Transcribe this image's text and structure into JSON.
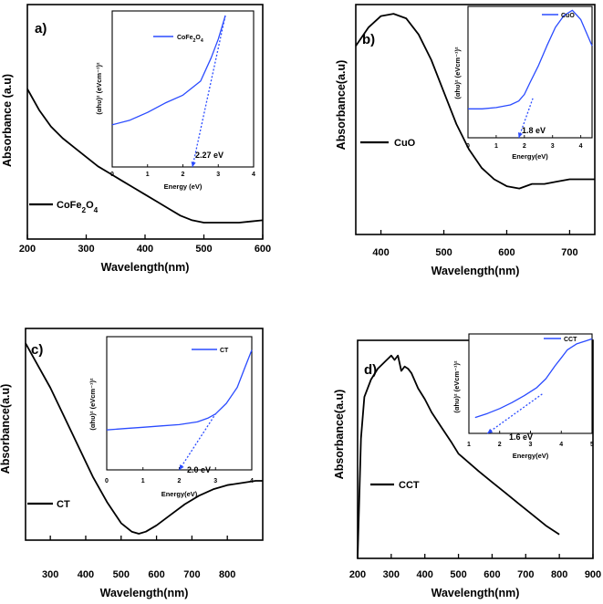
{
  "chart_data": [
    {
      "type": "line",
      "panel_label": "a)",
      "xlabel": "Wavelength(nm)",
      "ylabel": "Absorbance (a.u)",
      "xlim": [
        200,
        600
      ],
      "xticks": [
        "200",
        "300",
        "400",
        "500",
        "600"
      ],
      "ylim": [
        0,
        1
      ],
      "legend_position": "bottom-left",
      "series": [
        {
          "name": "CoFe2O4",
          "color": "#000000",
          "x": [
            200,
            220,
            240,
            260,
            280,
            300,
            320,
            340,
            360,
            380,
            400,
            420,
            440,
            460,
            480,
            500,
            520,
            540,
            560,
            580,
            600
          ],
          "y": [
            0.64,
            0.55,
            0.48,
            0.43,
            0.39,
            0.35,
            0.31,
            0.28,
            0.25,
            0.22,
            0.19,
            0.16,
            0.13,
            0.1,
            0.08,
            0.07,
            0.07,
            0.07,
            0.07,
            0.075,
            0.08
          ]
        }
      ],
      "inset": {
        "xlabel": "Energy (eV)",
        "ylabel": "(αhυ)² (eVcm⁻¹)²",
        "xlim": [
          0,
          4
        ],
        "xticks": [
          "0",
          "1",
          "2",
          "3",
          "4"
        ],
        "ylim": [
          0,
          1
        ],
        "legend_position": "top-right",
        "series": [
          {
            "name": "CoFe2O4",
            "color": "#2a4bff",
            "x": [
              0,
              0.5,
              1.0,
              1.5,
              2.0,
              2.5,
              2.8,
              3.0,
              3.2
            ],
            "y": [
              0.27,
              0.3,
              0.35,
              0.41,
              0.46,
              0.55,
              0.7,
              0.82,
              0.97
            ]
          }
        ],
        "fit_line": {
          "x": [
            2.27,
            3.2
          ],
          "y": [
            0,
            0.97
          ]
        },
        "annotation": "2.27 eV"
      }
    },
    {
      "type": "line",
      "panel_label": "b)",
      "xlabel": "Wavelength(nm)",
      "ylabel": "Absorbance(a.u)",
      "xlim": [
        360,
        740
      ],
      "xticks": [
        "400",
        "500",
        "600",
        "700"
      ],
      "ylim": [
        0,
        1
      ],
      "legend_position": "middle-left",
      "series": [
        {
          "name": "CuO",
          "color": "#000000",
          "x": [
            360,
            380,
            400,
            420,
            440,
            460,
            480,
            500,
            520,
            540,
            560,
            580,
            600,
            620,
            640,
            660,
            680,
            700,
            720,
            740
          ],
          "y": [
            0.82,
            0.9,
            0.95,
            0.96,
            0.94,
            0.87,
            0.76,
            0.62,
            0.48,
            0.37,
            0.29,
            0.24,
            0.21,
            0.2,
            0.22,
            0.22,
            0.23,
            0.24,
            0.24,
            0.24
          ]
        }
      ],
      "inset": {
        "xlabel": "Energy(eV)",
        "ylabel": "(αhυ)² (eVcm⁻¹)²",
        "xlim": [
          0,
          4.4
        ],
        "xticks": [
          "0",
          "1",
          "2",
          "3",
          "4"
        ],
        "ylim": [
          0,
          1
        ],
        "legend_position": "top-right",
        "series": [
          {
            "name": "CuO",
            "color": "#2a4bff",
            "x": [
              0,
              0.5,
              1.0,
              1.5,
              1.8,
              2.0,
              2.2,
              2.5,
              2.8,
              3.1,
              3.4,
              3.7,
              4.0,
              4.4
            ],
            "y": [
              0.22,
              0.22,
              0.23,
              0.25,
              0.28,
              0.33,
              0.42,
              0.55,
              0.7,
              0.84,
              0.93,
              0.97,
              0.9,
              0.7
            ]
          }
        ],
        "fit_line": {
          "x": [
            1.8,
            2.3
          ],
          "y": [
            0,
            0.3
          ]
        },
        "annotation": "1.8 eV"
      }
    },
    {
      "type": "line",
      "panel_label": "c)",
      "xlabel": "Wavelength(nm)",
      "ylabel": "Absorbance(a.u)",
      "xlim": [
        230,
        900
      ],
      "xticks": [
        "300",
        "400",
        "500",
        "600",
        "700",
        "800"
      ],
      "ylim": [
        0,
        1
      ],
      "legend_position": "bottom-left",
      "series": [
        {
          "name": "CT",
          "color": "#000000",
          "x": [
            230,
            260,
            300,
            340,
            380,
            420,
            460,
            500,
            530,
            550,
            570,
            600,
            640,
            680,
            720,
            760,
            800,
            840,
            880,
            900
          ],
          "y": [
            0.93,
            0.84,
            0.72,
            0.58,
            0.44,
            0.3,
            0.18,
            0.08,
            0.04,
            0.03,
            0.04,
            0.07,
            0.12,
            0.17,
            0.21,
            0.24,
            0.26,
            0.27,
            0.28,
            0.28
          ]
        }
      ],
      "inset": {
        "xlabel": "Energy(eV)",
        "ylabel": "(αhυ)² (eVcm⁻¹)²",
        "xlim": [
          0,
          4
        ],
        "xticks": [
          "0",
          "1",
          "2",
          "3",
          "4"
        ],
        "ylim": [
          0,
          1
        ],
        "legend_position": "top-right",
        "series": [
          {
            "name": "CT",
            "color": "#2a4bff",
            "x": [
              0,
              0.5,
              1.0,
              1.5,
              2.0,
              2.5,
              2.8,
              3.0,
              3.3,
              3.6,
              3.8,
              4.0
            ],
            "y": [
              0.3,
              0.31,
              0.32,
              0.33,
              0.34,
              0.36,
              0.39,
              0.42,
              0.5,
              0.62,
              0.76,
              0.9
            ]
          }
        ],
        "fit_line": {
          "x": [
            2.0,
            3.0
          ],
          "y": [
            0,
            0.42
          ]
        },
        "annotation": "2.0 eV"
      }
    },
    {
      "type": "line",
      "panel_label": "d)",
      "xlabel": "Wavelength(nm)",
      "ylabel": "Absorbance(a.u)",
      "xlim": [
        200,
        900
      ],
      "xticks": [
        "200",
        "300",
        "400",
        "500",
        "600",
        "700",
        "800",
        "900"
      ],
      "ylim": [
        0,
        1
      ],
      "legend_position": "bottom-left",
      "series": [
        {
          "name": "CCT",
          "color": "#000000",
          "x": [
            200,
            210,
            220,
            240,
            260,
            280,
            300,
            310,
            320,
            330,
            340,
            350,
            360,
            380,
            400,
            420,
            450,
            480,
            500,
            530,
            560,
            600,
            640,
            680,
            720,
            760,
            800
          ],
          "y": [
            0.0,
            0.55,
            0.74,
            0.82,
            0.87,
            0.9,
            0.93,
            0.91,
            0.93,
            0.86,
            0.88,
            0.87,
            0.85,
            0.78,
            0.73,
            0.67,
            0.6,
            0.53,
            0.48,
            0.44,
            0.4,
            0.35,
            0.3,
            0.25,
            0.2,
            0.15,
            0.11
          ]
        }
      ],
      "inset": {
        "xlabel": "Energy(eV)",
        "ylabel": "(αhυ)² (eVcm⁻¹)²",
        "xlim": [
          1,
          5
        ],
        "xticks": [
          "1",
          "2",
          "3",
          "4",
          "5"
        ],
        "ylim": [
          0,
          1
        ],
        "legend_position": "top-right",
        "series": [
          {
            "name": "CCT",
            "color": "#2a4bff",
            "x": [
              1.2,
              1.6,
              2.0,
              2.4,
              2.8,
              3.2,
              3.5,
              3.8,
              4.0,
              4.2,
              4.5,
              4.8,
              5.0
            ],
            "y": [
              0.16,
              0.2,
              0.25,
              0.31,
              0.38,
              0.46,
              0.55,
              0.68,
              0.76,
              0.84,
              0.9,
              0.93,
              0.95
            ]
          }
        ],
        "fit_line": {
          "x": [
            1.6,
            3.4
          ],
          "y": [
            0,
            0.4
          ]
        },
        "annotation": "1.6 eV"
      }
    }
  ]
}
